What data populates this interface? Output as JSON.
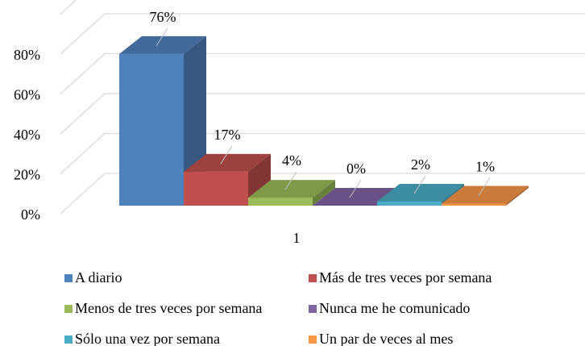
{
  "chart_data": {
    "type": "bar3d",
    "categories": [
      "1"
    ],
    "series": [
      {
        "name": "A diario",
        "color": "#4f81bd",
        "values": [
          76
        ],
        "value_labels": [
          "76%"
        ]
      },
      {
        "name": "Más de tres veces por semana",
        "color": "#c0504d",
        "values": [
          17
        ],
        "value_labels": [
          "17%"
        ]
      },
      {
        "name": "Menos de tres veces por semana",
        "color": "#9bbb59",
        "values": [
          4
        ],
        "value_labels": [
          "4%"
        ]
      },
      {
        "name": "Nunca me he comunicado",
        "color": "#8064a2",
        "values": [
          0
        ],
        "value_labels": [
          "0%"
        ]
      },
      {
        "name": "Sólo una vez por semana",
        "color": "#4bacc6",
        "values": [
          2
        ],
        "value_labels": [
          "2%"
        ]
      },
      {
        "name": "Un par de veces al mes",
        "color": "#f79646",
        "values": [
          1
        ],
        "value_labels": [
          "1%"
        ]
      }
    ],
    "ylim": [
      0,
      100
    ],
    "yticks": [
      {
        "value": 0,
        "label": "0%"
      },
      {
        "value": 20,
        "label": "20%"
      },
      {
        "value": 40,
        "label": "40%"
      },
      {
        "value": 60,
        "label": "60%"
      },
      {
        "value": 80,
        "label": "80%"
      }
    ],
    "grid": true,
    "legend": "bottom"
  }
}
